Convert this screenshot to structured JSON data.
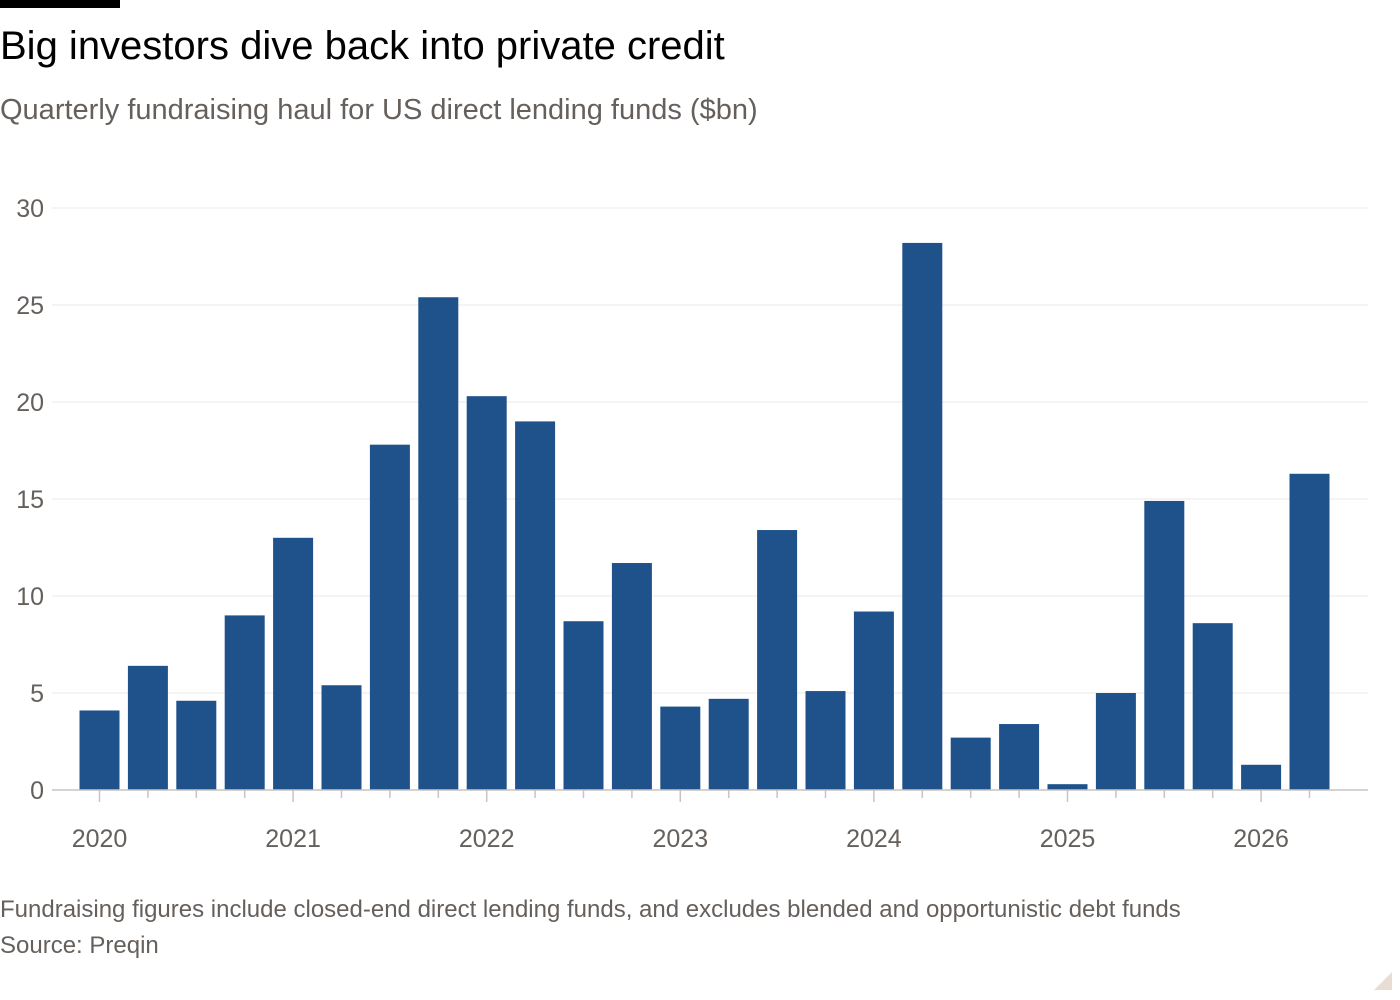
{
  "header": {
    "title": "Big investors dive back into private credit",
    "subtitle": "Quarterly fundraising haul for US direct lending funds ($bn)"
  },
  "footer": {
    "note": "Fundraising figures include closed-end direct lending funds, and excludes blended and opportunistic debt funds",
    "source": "Source: Preqin"
  },
  "colors": {
    "bar": "#1f528b",
    "grid": "#ece9e6",
    "axis": "#c8c4c0",
    "tick_text": "#66605c"
  },
  "chart_data": {
    "type": "bar",
    "title": "Big investors dive back into private credit",
    "subtitle": "Quarterly fundraising haul for US direct lending funds ($bn)",
    "xlabel": "",
    "ylabel": "",
    "x_tick_labels": [
      "2020",
      "2021",
      "2022",
      "2023",
      "2024",
      "2025",
      "2026"
    ],
    "categories": [
      "2020 Q1",
      "2020 Q2",
      "2020 Q3",
      "2020 Q4",
      "2021 Q1",
      "2021 Q2",
      "2021 Q3",
      "2021 Q4",
      "2022 Q1",
      "2022 Q2",
      "2022 Q3",
      "2022 Q4",
      "2023 Q1",
      "2023 Q2",
      "2023 Q3",
      "2023 Q4",
      "2024 Q1",
      "2024 Q2",
      "2024 Q3",
      "2024 Q4",
      "2025 Q1",
      "2025 Q2",
      "2025 Q3",
      "2025 Q4",
      "2026 Q1",
      "2026 Q2"
    ],
    "values": [
      4.1,
      6.4,
      4.6,
      9.0,
      13.0,
      5.4,
      17.8,
      25.4,
      20.3,
      19.0,
      8.7,
      11.7,
      4.3,
      4.7,
      13.4,
      5.1,
      9.2,
      28.2,
      2.7,
      3.4,
      0.3,
      5.0,
      14.9,
      8.6,
      1.3,
      16.3
    ],
    "ylim": [
      0,
      30
    ],
    "yticks": [
      0,
      5,
      10,
      15,
      20,
      25,
      30
    ],
    "grid": true,
    "legend": "none"
  }
}
